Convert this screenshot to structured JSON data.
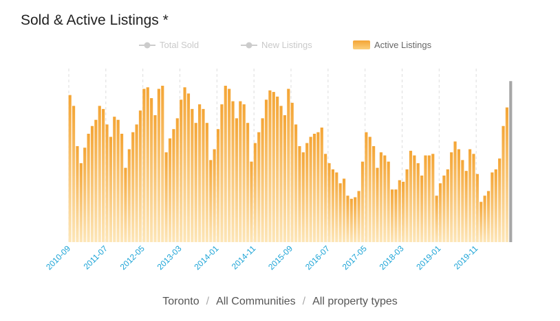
{
  "header": {
    "title": "Sold & Active Listings *"
  },
  "legend": [
    {
      "name": "Total Sold",
      "state": "inactive"
    },
    {
      "name": "New Listings",
      "state": "inactive"
    },
    {
      "name": "Active Listings",
      "state": "active"
    }
  ],
  "breadcrumb": {
    "city": "Toronto",
    "community": "All Communities",
    "type": "All property types",
    "separator": "/"
  },
  "colors": {
    "bar_top": "#f4a535",
    "bar_bottom": "#fde6b8",
    "axis_label": "#1aa3d6",
    "inactive": "#c9c9c9",
    "highlight": "#a6a6a6"
  },
  "chart_data": {
    "type": "bar",
    "series": [
      {
        "name": "Active Listings",
        "values": [
          95,
          88,
          62,
          51,
          61,
          70,
          75,
          79,
          88,
          86,
          76,
          68,
          81,
          79,
          70,
          48,
          60,
          71,
          76,
          85,
          99,
          100,
          93,
          82,
          99,
          101,
          58,
          67,
          73,
          80,
          92,
          100,
          96,
          86,
          77,
          89,
          86,
          77,
          53,
          60,
          73,
          89,
          101,
          99,
          91,
          80,
          91,
          89,
          77,
          52,
          64,
          71,
          80,
          92,
          98,
          97,
          94,
          88,
          82,
          99,
          90,
          76,
          62,
          58,
          64,
          68,
          70,
          71,
          74,
          57,
          51,
          47,
          45,
          38,
          41,
          30,
          28,
          29,
          33,
          52,
          71,
          68,
          62,
          48,
          58,
          56,
          52,
          34,
          34,
          40,
          39,
          47,
          59,
          56,
          51,
          43,
          56,
          56,
          57,
          30,
          38,
          43,
          47,
          58,
          65,
          60,
          53,
          46,
          60,
          57,
          44,
          26,
          30,
          33,
          45,
          47,
          54,
          75,
          87,
          104
        ]
      }
    ],
    "x_tick_labels": [
      "2010-09",
      "2011-07",
      "2012-05",
      "2013-03",
      "2014-01",
      "2014-11",
      "2015-09",
      "2016-07",
      "2017-05",
      "2018-03",
      "2019-01",
      "2019-11"
    ],
    "ylim": [
      0,
      105
    ],
    "grid": "vertical dashed",
    "legend_position": "top-center"
  }
}
